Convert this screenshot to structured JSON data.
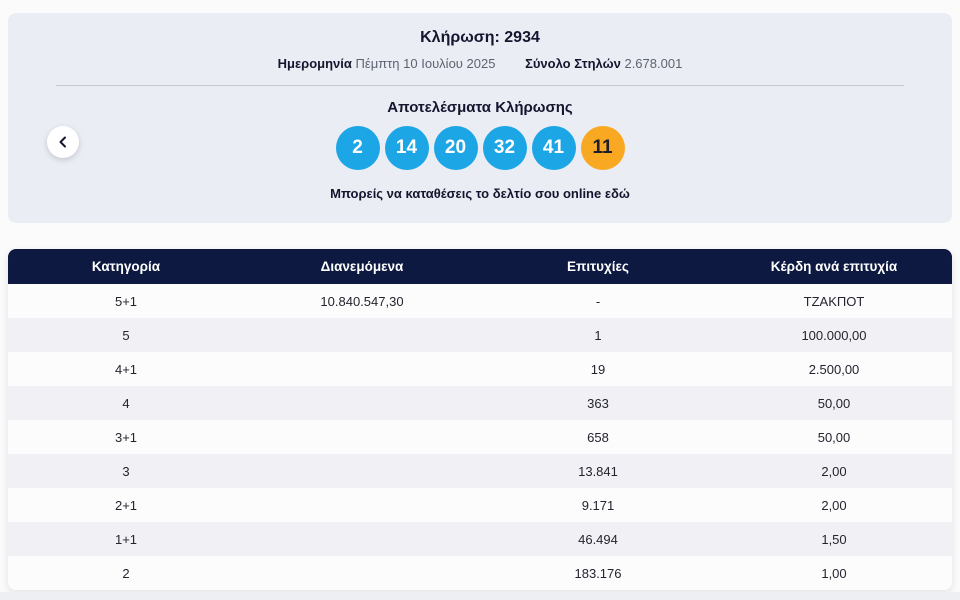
{
  "draw": {
    "title_label": "Κλήρωση:",
    "title_value": "2934",
    "date_label": "Ημερομηνία",
    "date_value": "Πέμπτη 10 Ιουλίου 2025",
    "columns_label": "Σύνολο Στηλών",
    "columns_value": "2.678.001",
    "results_heading": "Αποτελέσματα Κλήρωσης",
    "numbers": [
      "2",
      "14",
      "20",
      "32",
      "41"
    ],
    "joker_number": "11",
    "note": "Μπορείς να καταθέσεις το δελτίο σου online εδώ",
    "prev_icon": "chevron-left"
  },
  "colors": {
    "ball_blue": "#1ca6e6",
    "ball_joker": "#f9a822",
    "table_header_bg": "#0d1940",
    "panel_bg": "#ebedf4"
  },
  "table": {
    "headers": [
      "Κατηγορία",
      "Διανεμόμενα",
      "Επιτυχίες",
      "Κέρδη ανά επιτυχία"
    ],
    "rows": [
      [
        "5+1",
        "10.840.547,30",
        "-",
        "ΤΖΑΚΠΟΤ"
      ],
      [
        "5",
        "",
        "1",
        "100.000,00"
      ],
      [
        "4+1",
        "",
        "19",
        "2.500,00"
      ],
      [
        "4",
        "",
        "363",
        "50,00"
      ],
      [
        "3+1",
        "",
        "658",
        "50,00"
      ],
      [
        "3",
        "",
        "13.841",
        "2,00"
      ],
      [
        "2+1",
        "",
        "9.171",
        "2,00"
      ],
      [
        "1+1",
        "",
        "46.494",
        "1,50"
      ],
      [
        "2",
        "",
        "183.176",
        "1,00"
      ]
    ]
  }
}
